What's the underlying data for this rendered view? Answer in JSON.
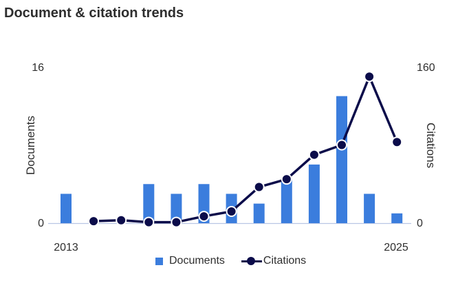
{
  "title": "Document & citation trends",
  "colors": {
    "documents": "#3b7ddd",
    "citations": "#0b0c4a",
    "axis": "#b9c6e4",
    "text": "#2e2e2e"
  },
  "legend": {
    "documents": "Documents",
    "citations": "Citations"
  },
  "chart_data": {
    "type": "bar+line",
    "title": "Document & citation trends",
    "x_tick_labels": [
      "2013",
      "2025"
    ],
    "x": [
      2013,
      2014,
      2015,
      2016,
      2017,
      2018,
      2019,
      2020,
      2021,
      2022,
      2023,
      2024,
      2025
    ],
    "left_axis": {
      "label": "Documents",
      "range": [
        0,
        16
      ],
      "ticks": [
        "0",
        "16"
      ]
    },
    "right_axis": {
      "label": "Citations",
      "range": [
        0,
        160
      ],
      "ticks": [
        "0",
        "160"
      ]
    },
    "series": [
      {
        "name": "Documents",
        "type": "bar",
        "axis": "left",
        "values": [
          3,
          0,
          0,
          4,
          3,
          4,
          3,
          2,
          4.5,
          6,
          13,
          3,
          1
        ]
      },
      {
        "name": "Citations",
        "type": "line",
        "axis": "right",
        "values": [
          null,
          2,
          3,
          1,
          1,
          7,
          12,
          37,
          45,
          70,
          80,
          150,
          83
        ]
      }
    ],
    "legend_position": "bottom"
  }
}
